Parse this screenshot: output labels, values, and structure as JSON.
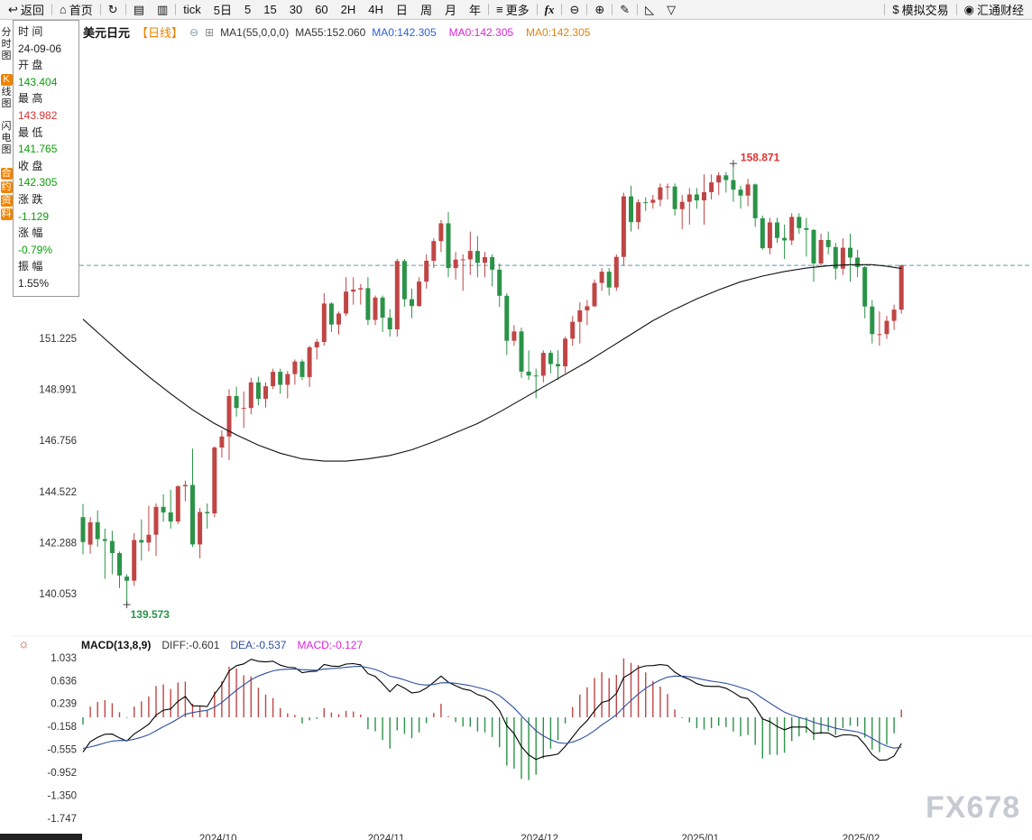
{
  "colors": {
    "up": "#c04545",
    "down": "#2b9348",
    "text_red": "#e03232",
    "text_green": "#0aa00a",
    "text_black": "#222222",
    "orange": "#f08300",
    "dashed_line": "#5f9bb0",
    "ma_line": "#111111",
    "dea_line": "#2e4f9e",
    "magenta": "#d926d9",
    "blue": "#2962d9",
    "ma_orange": "#e8820c"
  },
  "icon_glyphs": {
    "back": "↩",
    "home": "⌂",
    "refresh": "↻",
    "line-chart": "▤",
    "indicator-chart": "▥",
    "menu": "≡",
    "fx": "fx",
    "zoom-out": "⊖",
    "zoom-in": "⊕",
    "pencil": "✎",
    "triangle-left": "◺",
    "triangle-down": "▽",
    "dollar": "$",
    "eye": "◉",
    "collapse": "⊖",
    "ma-panel": "⊞",
    "sun": "☼"
  },
  "toolbar": {
    "items": [
      {
        "name": "back",
        "icon": "back",
        "label": "返回"
      },
      {
        "type": "sep"
      },
      {
        "name": "home",
        "icon": "home",
        "label": "首页"
      },
      {
        "type": "sep"
      },
      {
        "name": "refresh",
        "icon": "refresh",
        "label": ""
      },
      {
        "type": "sep"
      },
      {
        "name": "chart-type",
        "icon": "line-chart",
        "label": ""
      },
      {
        "name": "indicator",
        "icon": "indicator-chart",
        "label": ""
      },
      {
        "type": "sep"
      },
      {
        "name": "tick",
        "label": "tick"
      },
      {
        "name": "period-5d",
        "label": "5日"
      },
      {
        "name": "period-5",
        "label": "5"
      },
      {
        "name": "period-15",
        "label": "15"
      },
      {
        "name": "period-30",
        "label": "30"
      },
      {
        "name": "period-60",
        "label": "60"
      },
      {
        "name": "period-2h",
        "label": "2H"
      },
      {
        "name": "period-4h",
        "label": "4H"
      },
      {
        "name": "period-day",
        "label": "日"
      },
      {
        "name": "period-week",
        "label": "周"
      },
      {
        "name": "period-month",
        "label": "月"
      },
      {
        "name": "period-year",
        "label": "年"
      },
      {
        "type": "sep"
      },
      {
        "name": "more",
        "icon": "menu",
        "label": "更多"
      },
      {
        "type": "sep"
      },
      {
        "name": "formula",
        "icon": "fx",
        "label": ""
      },
      {
        "type": "sep"
      },
      {
        "name": "zoom-out",
        "icon": "zoom-out",
        "label": ""
      },
      {
        "type": "sep"
      },
      {
        "name": "zoom-in",
        "icon": "zoom-in",
        "label": ""
      },
      {
        "type": "sep"
      },
      {
        "name": "draw",
        "icon": "pencil",
        "label": ""
      },
      {
        "type": "sep"
      },
      {
        "name": "trend-tool",
        "icon": "triangle-left",
        "label": ""
      },
      {
        "name": "shape-tool",
        "icon": "triangle-down",
        "label": ""
      },
      {
        "type": "spacer"
      },
      {
        "type": "sep"
      },
      {
        "name": "sim-trading",
        "icon": "dollar",
        "label": "模拟交易"
      },
      {
        "type": "sep"
      },
      {
        "name": "fx678",
        "icon": "eye",
        "label": "汇通财经"
      }
    ]
  },
  "side_tabs": [
    {
      "name": "time-chart",
      "label": "分时图",
      "style": "plain"
    },
    {
      "name": "kline-chart",
      "label": "K线图",
      "style": "k-highlight"
    },
    {
      "name": "lightning-chart",
      "label": "闪电图",
      "style": "plain"
    },
    {
      "name": "contract-info",
      "label": "合约资料",
      "style": "orange"
    }
  ],
  "ohlc_panel": {
    "rows": [
      {
        "label": "时 间",
        "value": "24-09-06",
        "color": "black"
      },
      {
        "label": "开 盘",
        "value": "143.404",
        "color": "green"
      },
      {
        "label": "最 高",
        "value": "143.982",
        "color": "red"
      },
      {
        "label": "最 低",
        "value": "141.765",
        "color": "green"
      },
      {
        "label": "收 盘",
        "value": "142.305",
        "color": "green"
      },
      {
        "label": "涨 跌",
        "value": "-1.129",
        "color": "green"
      },
      {
        "label": "涨 幅",
        "value": "-0.79%",
        "color": "green"
      },
      {
        "label": "振 幅",
        "value": "1.55%",
        "color": "black"
      }
    ]
  },
  "chart_header": {
    "symbol": "美元日元",
    "period": "【日线】",
    "ma_settings": "MA1(55,0,0,0)",
    "ma55": "MA55:152.060",
    "ma_values": [
      {
        "text": "MA0:142.305",
        "color": "#2962d9"
      },
      {
        "text": "MA0:142.305",
        "color": "#d926d9"
      },
      {
        "text": "MA0:142.305",
        "color": "#e8820c"
      }
    ]
  },
  "macd_header": {
    "title": "MACD(13,8,9)",
    "diff": "DIFF:-0.601",
    "dea": "DEA:-0.537",
    "macd": "MACD:-0.127"
  },
  "watermark": {
    "text": "FX678"
  },
  "chart_data": {
    "type": "candlestick+macd",
    "symbol": "USD/JPY daily",
    "price_axis_labels": [
      151.225,
      148.991,
      146.756,
      144.522,
      142.288,
      140.053
    ],
    "macd_axis_labels": [
      1.033,
      0.636,
      0.239,
      -0.158,
      -0.555,
      -0.952,
      -1.35,
      -1.747
    ],
    "x_axis": [
      {
        "label": "2024/10",
        "index": 17
      },
      {
        "label": "2024/11",
        "index": 40
      },
      {
        "label": "2024/12",
        "index": 61
      },
      {
        "label": "2025/01",
        "index": 83
      },
      {
        "label": "2025/02",
        "index": 105
      }
    ],
    "high_annotation": {
      "value": "158.871",
      "index": 89
    },
    "low_annotation": {
      "value": "139.573",
      "index": 6
    },
    "current_price_line": 154.42,
    "macd_seed": {
      "diff": -0.601,
      "dea": -0.537
    },
    "ma55_keypoints": [
      [
        0,
        152.06
      ],
      [
        3,
        151.2
      ],
      [
        6,
        150.35
      ],
      [
        9,
        149.55
      ],
      [
        12,
        148.8
      ],
      [
        15,
        148.1
      ],
      [
        18,
        147.5
      ],
      [
        21,
        147.0
      ],
      [
        24,
        146.55
      ],
      [
        27,
        146.2
      ],
      [
        30,
        145.95
      ],
      [
        33,
        145.85
      ],
      [
        36,
        145.85
      ],
      [
        39,
        145.95
      ],
      [
        42,
        146.1
      ],
      [
        45,
        146.35
      ],
      [
        48,
        146.7
      ],
      [
        51,
        147.1
      ],
      [
        54,
        147.5
      ],
      [
        57,
        148.0
      ],
      [
        60,
        148.55
      ],
      [
        63,
        149.1
      ],
      [
        66,
        149.65
      ],
      [
        69,
        150.2
      ],
      [
        72,
        150.8
      ],
      [
        75,
        151.4
      ],
      [
        78,
        152.0
      ],
      [
        81,
        152.5
      ],
      [
        84,
        152.95
      ],
      [
        87,
        153.35
      ],
      [
        90,
        153.7
      ],
      [
        93,
        153.95
      ],
      [
        96,
        154.15
      ],
      [
        99,
        154.3
      ],
      [
        102,
        154.4
      ],
      [
        105,
        154.45
      ],
      [
        108,
        154.45
      ],
      [
        110,
        154.38
      ],
      [
        112,
        154.28
      ]
    ],
    "candles": [
      [
        143.4,
        143.98,
        141.77,
        142.31
      ],
      [
        142.2,
        143.4,
        141.8,
        143.18
      ],
      [
        143.18,
        143.7,
        142.1,
        142.44
      ],
      [
        142.44,
        142.9,
        140.7,
        142.36
      ],
      [
        142.36,
        142.8,
        140.9,
        141.83
      ],
      [
        141.83,
        141.9,
        140.3,
        140.85
      ],
      [
        140.8,
        140.9,
        139.573,
        140.62
      ],
      [
        140.62,
        142.7,
        140.4,
        142.4
      ],
      [
        142.4,
        143.3,
        141.5,
        142.29
      ],
      [
        142.29,
        143.9,
        141.9,
        142.63
      ],
      [
        142.63,
        144.0,
        141.7,
        143.85
      ],
      [
        143.85,
        144.4,
        143.2,
        143.61
      ],
      [
        143.61,
        144.6,
        142.9,
        143.21
      ],
      [
        143.21,
        144.8,
        143.1,
        144.75
      ],
      [
        144.75,
        145.0,
        144.1,
        144.81
      ],
      [
        144.81,
        146.4,
        142.1,
        142.21
      ],
      [
        142.21,
        143.8,
        141.6,
        143.63
      ],
      [
        143.63,
        144.0,
        142.9,
        143.57
      ],
      [
        143.57,
        146.5,
        143.4,
        146.45
      ],
      [
        146.45,
        147.2,
        146.0,
        146.93
      ],
      [
        146.93,
        149.0,
        145.9,
        148.7
      ],
      [
        148.7,
        149.1,
        147.8,
        148.18
      ],
      [
        148.18,
        148.9,
        147.3,
        148.18
      ],
      [
        148.18,
        149.5,
        147.9,
        149.3
      ],
      [
        149.3,
        149.55,
        148.3,
        148.58
      ],
      [
        148.58,
        149.3,
        148.2,
        149.13
      ],
      [
        149.13,
        149.9,
        149.0,
        149.76
      ],
      [
        149.76,
        149.9,
        148.8,
        149.19
      ],
      [
        149.19,
        149.8,
        148.6,
        149.66
      ],
      [
        149.66,
        150.3,
        149.2,
        150.21
      ],
      [
        150.21,
        150.3,
        149.4,
        149.53
      ],
      [
        149.53,
        150.9,
        149.1,
        150.83
      ],
      [
        150.83,
        151.2,
        150.3,
        151.07
      ],
      [
        151.07,
        153.2,
        150.9,
        152.75
      ],
      [
        152.75,
        152.8,
        151.5,
        151.83
      ],
      [
        151.83,
        152.4,
        151.4,
        152.31
      ],
      [
        152.31,
        153.9,
        152.2,
        153.27
      ],
      [
        153.27,
        153.9,
        152.7,
        153.36
      ],
      [
        153.36,
        153.6,
        152.7,
        153.42
      ],
      [
        153.42,
        153.9,
        151.8,
        152.03
      ],
      [
        152.03,
        153.1,
        151.8,
        153.01
      ],
      [
        153.01,
        153.1,
        151.5,
        152.13
      ],
      [
        152.13,
        152.5,
        151.3,
        151.62
      ],
      [
        151.62,
        154.7,
        151.3,
        154.61
      ],
      [
        154.61,
        154.7,
        152.6,
        152.94
      ],
      [
        152.94,
        153.4,
        152.1,
        152.64
      ],
      [
        152.64,
        153.9,
        152.6,
        153.71
      ],
      [
        153.71,
        154.9,
        153.4,
        154.62
      ],
      [
        154.62,
        155.6,
        154.3,
        155.48
      ],
      [
        155.48,
        156.4,
        155.0,
        156.26
      ],
      [
        156.26,
        156.75,
        153.9,
        154.3
      ],
      [
        154.3,
        155.0,
        153.8,
        154.67
      ],
      [
        154.67,
        154.9,
        153.3,
        154.68
      ],
      [
        154.68,
        155.9,
        154.0,
        155.05
      ],
      [
        155.05,
        155.7,
        153.9,
        154.53
      ],
      [
        154.53,
        155.0,
        153.9,
        154.78
      ],
      [
        154.78,
        154.9,
        153.5,
        154.23
      ],
      [
        154.23,
        154.5,
        152.6,
        153.09
      ],
      [
        153.09,
        153.2,
        150.5,
        151.12
      ],
      [
        151.12,
        151.8,
        150.9,
        151.53
      ],
      [
        151.53,
        151.7,
        149.5,
        149.77
      ],
      [
        149.77,
        150.7,
        149.4,
        149.6
      ],
      [
        149.6,
        149.9,
        148.6,
        149.59
      ],
      [
        149.59,
        150.7,
        149.3,
        150.59
      ],
      [
        150.59,
        150.7,
        149.7,
        150.1
      ],
      [
        150.1,
        150.7,
        149.4,
        150.0
      ],
      [
        150.0,
        151.3,
        149.7,
        151.21
      ],
      [
        151.21,
        152.2,
        150.9,
        151.95
      ],
      [
        151.95,
        152.8,
        151.0,
        152.45
      ],
      [
        152.45,
        152.9,
        151.8,
        152.63
      ],
      [
        152.63,
        153.8,
        152.6,
        153.65
      ],
      [
        153.65,
        154.3,
        153.3,
        154.14
      ],
      [
        154.14,
        154.3,
        153.1,
        153.45
      ],
      [
        153.45,
        154.9,
        153.3,
        154.79
      ],
      [
        154.79,
        157.6,
        154.4,
        157.44
      ],
      [
        157.44,
        157.9,
        155.9,
        156.31
      ],
      [
        156.31,
        157.3,
        156.0,
        157.18
      ],
      [
        157.18,
        157.4,
        156.8,
        157.16
      ],
      [
        157.16,
        157.5,
        156.9,
        157.29
      ],
      [
        157.29,
        158.0,
        157.0,
        157.83
      ],
      [
        157.83,
        158.0,
        157.3,
        157.87
      ],
      [
        157.87,
        158.0,
        156.6,
        156.88
      ],
      [
        156.88,
        157.5,
        156.0,
        157.2
      ],
      [
        157.2,
        157.8,
        156.2,
        157.52
      ],
      [
        157.52,
        157.8,
        156.9,
        157.26
      ],
      [
        157.26,
        158.4,
        156.2,
        157.62
      ],
      [
        157.62,
        158.4,
        157.3,
        158.05
      ],
      [
        158.05,
        158.5,
        157.5,
        158.36
      ],
      [
        158.36,
        158.5,
        157.6,
        158.15
      ],
      [
        158.15,
        158.871,
        157.2,
        157.73
      ],
      [
        157.73,
        157.9,
        156.9,
        157.47
      ],
      [
        157.47,
        158.2,
        157.0,
        157.96
      ],
      [
        157.96,
        158.0,
        156.1,
        156.48
      ],
      [
        156.48,
        156.6,
        155.1,
        155.17
      ],
      [
        155.17,
        156.5,
        154.9,
        156.3
      ],
      [
        156.3,
        156.5,
        155.4,
        155.62
      ],
      [
        155.62,
        156.2,
        154.7,
        155.51
      ],
      [
        155.51,
        156.7,
        155.3,
        156.54
      ],
      [
        156.54,
        156.7,
        155.8,
        156.05
      ],
      [
        156.05,
        156.5,
        154.8,
        155.97
      ],
      [
        155.97,
        156.0,
        153.7,
        154.5
      ],
      [
        154.5,
        155.8,
        154.4,
        155.53
      ],
      [
        155.53,
        155.9,
        154.9,
        155.22
      ],
      [
        155.22,
        155.4,
        153.8,
        154.28
      ],
      [
        154.28,
        155.6,
        154.0,
        155.19
      ],
      [
        155.19,
        155.8,
        153.7,
        154.76
      ],
      [
        154.76,
        155.1,
        153.9,
        154.34
      ],
      [
        154.34,
        154.4,
        152.1,
        152.62
      ],
      [
        152.62,
        152.9,
        151.0,
        151.41
      ],
      [
        151.41,
        152.4,
        150.9,
        151.41
      ],
      [
        151.41,
        152.2,
        151.2,
        151.99
      ],
      [
        151.99,
        152.7,
        151.6,
        152.48
      ],
      [
        152.48,
        154.45,
        152.3,
        154.42
      ]
    ]
  }
}
